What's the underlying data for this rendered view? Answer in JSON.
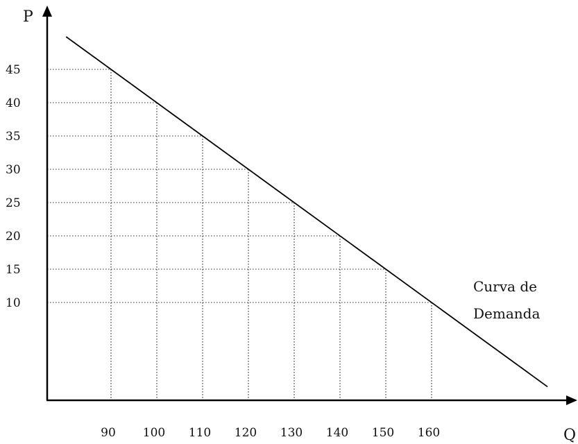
{
  "chart_data": {
    "type": "line",
    "title": "",
    "xlabel": "Q",
    "ylabel": "P",
    "curve_label": [
      "Curva de",
      "Demanda"
    ],
    "x_ticks": [
      "90",
      "100",
      "110",
      "120",
      "130",
      "140",
      "150",
      "160"
    ],
    "y_ticks": [
      "45",
      "40",
      "35",
      "30",
      "25",
      "20",
      "15",
      "10"
    ],
    "series": [
      {
        "points": [
          {
            "x": 90,
            "y": 45
          },
          {
            "x": 100,
            "y": 40
          },
          {
            "x": 110,
            "y": 35
          },
          {
            "x": 120,
            "y": 30
          },
          {
            "x": 130,
            "y": 25
          },
          {
            "x": 140,
            "y": 20
          },
          {
            "x": 150,
            "y": 15
          },
          {
            "x": 160,
            "y": 10
          }
        ]
      }
    ],
    "grid": "dotted guides from axes to each point on the curve"
  }
}
